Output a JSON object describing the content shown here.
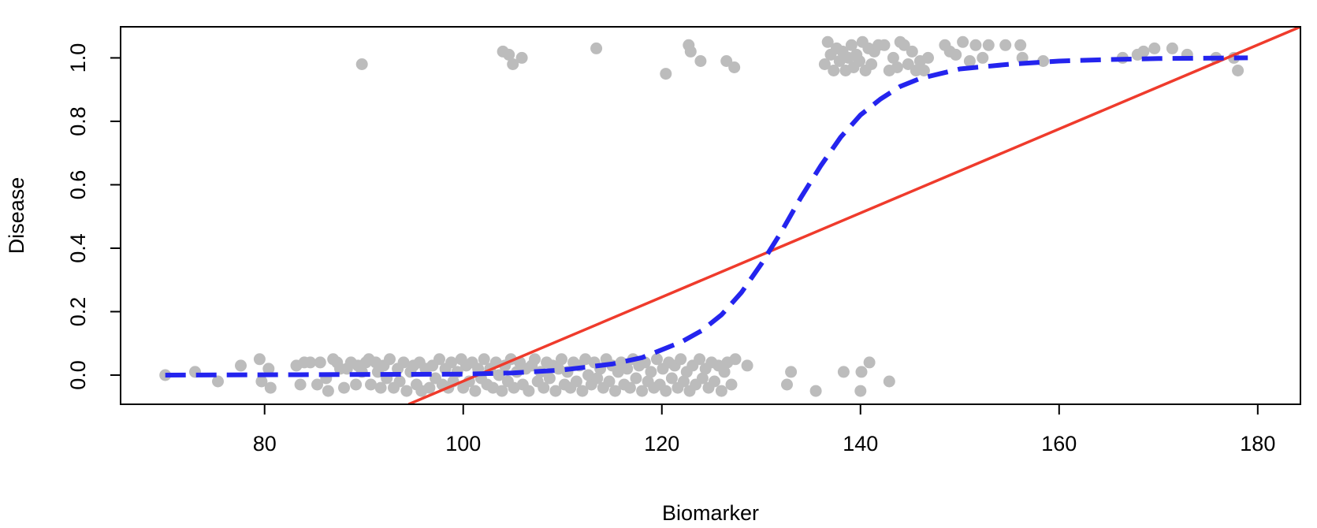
{
  "chart_data": {
    "type": "scatter",
    "title": "",
    "xlabel": "Biomarker",
    "ylabel": "Disease",
    "xlim": [
      65.5,
      184.3
    ],
    "ylim": [
      -0.092,
      1.098
    ],
    "x_ticks": [
      80,
      100,
      120,
      140,
      160,
      180
    ],
    "x_tick_labels": [
      "80",
      "100",
      "120",
      "140",
      "160",
      "180"
    ],
    "y_ticks": [
      0.0,
      0.2,
      0.4,
      0.6,
      0.8,
      1.0
    ],
    "y_tick_labels": [
      "0.0",
      "0.2",
      "0.4",
      "0.6",
      "0.8",
      "1.0"
    ],
    "grid": false,
    "legend": "none",
    "colors": {
      "points": "#bcbcbc",
      "linear_fit": "#ef3b2c",
      "logistic_fit": "#2424ee",
      "frame": "#000000"
    },
    "series": [
      {
        "type": "scatter",
        "points": [
          [
            70.0,
            0.0
          ],
          [
            73.0,
            0.01
          ],
          [
            75.3,
            -0.02
          ],
          [
            77.6,
            0.03
          ],
          [
            79.5,
            0.05
          ],
          [
            79.7,
            -0.02
          ],
          [
            80.4,
            0.02
          ],
          [
            80.6,
            -0.04
          ],
          [
            83.2,
            0.03
          ],
          [
            83.6,
            -0.03
          ],
          [
            84.0,
            0.04
          ],
          [
            84.6,
            0.04
          ],
          [
            85.3,
            -0.03
          ],
          [
            85.6,
            0.04
          ],
          [
            86.2,
            -0.01
          ],
          [
            86.4,
            -0.05
          ],
          [
            86.9,
            0.05
          ],
          [
            87.3,
            0.04
          ],
          [
            87.6,
            0.02
          ],
          [
            88.0,
            -0.04
          ],
          [
            88.3,
            0.02
          ],
          [
            88.7,
            0.04
          ],
          [
            89.2,
            -0.03
          ],
          [
            89.4,
            0.03
          ],
          [
            89.8,
            0.01
          ],
          [
            90.2,
            0.04
          ],
          [
            90.5,
            0.05
          ],
          [
            90.7,
            -0.03
          ],
          [
            91.2,
            0.04
          ],
          [
            91.4,
            0.01
          ],
          [
            91.7,
            -0.04
          ],
          [
            92.0,
            0.03
          ],
          [
            92.3,
            -0.01
          ],
          [
            92.6,
            0.05
          ],
          [
            93.0,
            -0.04
          ],
          [
            93.4,
            0.02
          ],
          [
            93.6,
            -0.02
          ],
          [
            94.0,
            0.04
          ],
          [
            94.3,
            -0.05
          ],
          [
            94.7,
            0.01
          ],
          [
            95.0,
            0.03
          ],
          [
            95.3,
            -0.03
          ],
          [
            95.6,
            0.04
          ],
          [
            95.8,
            -0.05
          ],
          [
            96.2,
            0.02
          ],
          [
            96.6,
            -0.04
          ],
          [
            96.9,
            0.03
          ],
          [
            97.2,
            -0.01
          ],
          [
            97.6,
            0.05
          ],
          [
            97.9,
            -0.03
          ],
          [
            98.2,
            0.02
          ],
          [
            98.5,
            -0.04
          ],
          [
            98.8,
            0.04
          ],
          [
            99.0,
            -0.02
          ],
          [
            99.4,
            0.01
          ],
          [
            99.8,
            0.05
          ],
          [
            100.0,
            -0.04
          ],
          [
            100.3,
            0.03
          ],
          [
            100.6,
            -0.02
          ],
          [
            100.9,
            0.04
          ],
          [
            101.2,
            -0.05
          ],
          [
            101.5,
            0.02
          ],
          [
            101.8,
            -0.01
          ],
          [
            102.1,
            0.05
          ],
          [
            102.4,
            -0.03
          ],
          [
            102.7,
            0.02
          ],
          [
            103.0,
            -0.04
          ],
          [
            103.3,
            0.04
          ],
          [
            103.6,
            0.0
          ],
          [
            103.9,
            -0.05
          ],
          [
            104.2,
            0.03
          ],
          [
            104.5,
            -0.02
          ],
          [
            104.8,
            0.05
          ],
          [
            105.1,
            -0.04
          ],
          [
            105.4,
            0.01
          ],
          [
            105.7,
            0.04
          ],
          [
            106.0,
            -0.03
          ],
          [
            106.3,
            0.02
          ],
          [
            106.6,
            -0.05
          ],
          [
            106.9,
            0.03
          ],
          [
            107.2,
            0.05
          ],
          [
            107.5,
            -0.02
          ],
          [
            107.8,
            0.01
          ],
          [
            108.1,
            -0.04
          ],
          [
            108.4,
            0.04
          ],
          [
            108.7,
            -0.01
          ],
          [
            109.0,
            0.03
          ],
          [
            109.3,
            -0.05
          ],
          [
            109.6,
            0.02
          ],
          [
            109.9,
            0.05
          ],
          [
            110.2,
            -0.03
          ],
          [
            110.5,
            0.01
          ],
          [
            110.8,
            -0.04
          ],
          [
            111.1,
            0.04
          ],
          [
            111.4,
            -0.02
          ],
          [
            111.7,
            0.03
          ],
          [
            112.0,
            -0.05
          ],
          [
            112.3,
            0.05
          ],
          [
            112.6,
            0.0
          ],
          [
            112.9,
            -0.03
          ],
          [
            113.2,
            0.04
          ],
          [
            113.5,
            -0.01
          ],
          [
            113.8,
            0.02
          ],
          [
            114.1,
            -0.04
          ],
          [
            114.4,
            0.05
          ],
          [
            114.7,
            -0.02
          ],
          [
            115.0,
            0.03
          ],
          [
            115.3,
            -0.05
          ],
          [
            115.6,
            0.01
          ],
          [
            115.9,
            0.04
          ],
          [
            116.2,
            -0.03
          ],
          [
            116.5,
            0.02
          ],
          [
            116.8,
            -0.04
          ],
          [
            117.1,
            0.05
          ],
          [
            117.4,
            -0.01
          ],
          [
            117.7,
            0.03
          ],
          [
            118.0,
            -0.05
          ],
          [
            118.3,
            0.04
          ],
          [
            118.6,
            -0.02
          ],
          [
            118.9,
            0.01
          ],
          [
            119.2,
            -0.04
          ],
          [
            119.5,
            0.05
          ],
          [
            119.8,
            -0.03
          ],
          [
            120.1,
            0.02
          ],
          [
            120.4,
            -0.05
          ],
          [
            120.7,
            0.04
          ],
          [
            121.0,
            -0.01
          ],
          [
            121.3,
            0.03
          ],
          [
            121.6,
            -0.04
          ],
          [
            121.9,
            0.05
          ],
          [
            122.2,
            -0.02
          ],
          [
            122.5,
            0.01
          ],
          [
            122.8,
            -0.05
          ],
          [
            123.1,
            0.03
          ],
          [
            123.4,
            -0.03
          ],
          [
            123.8,
            0.05
          ],
          [
            124.1,
            -0.01
          ],
          [
            124.4,
            0.02
          ],
          [
            124.7,
            -0.04
          ],
          [
            125.0,
            0.04
          ],
          [
            125.3,
            -0.02
          ],
          [
            125.7,
            0.03
          ],
          [
            126.0,
            -0.05
          ],
          [
            126.3,
            0.01
          ],
          [
            126.6,
            0.04
          ],
          [
            127.0,
            -0.03
          ],
          [
            127.4,
            0.05
          ],
          [
            128.6,
            0.03
          ],
          [
            132.6,
            -0.03
          ],
          [
            133.0,
            0.01
          ],
          [
            135.5,
            -0.05
          ],
          [
            138.3,
            0.01
          ],
          [
            140.0,
            -0.05
          ],
          [
            140.1,
            0.01
          ],
          [
            140.9,
            0.04
          ],
          [
            142.9,
            -0.02
          ],
          [
            89.8,
            0.98
          ],
          [
            104.0,
            1.02
          ],
          [
            104.6,
            1.01
          ],
          [
            105.0,
            0.98
          ],
          [
            105.9,
            1.0
          ],
          [
            113.4,
            1.03
          ],
          [
            120.4,
            0.95
          ],
          [
            122.7,
            1.04
          ],
          [
            122.9,
            1.02
          ],
          [
            123.9,
            0.99
          ],
          [
            126.5,
            0.99
          ],
          [
            127.3,
            0.97
          ],
          [
            136.4,
            0.98
          ],
          [
            136.7,
            1.05
          ],
          [
            137.0,
            1.01
          ],
          [
            137.3,
            0.96
          ],
          [
            137.6,
            1.03
          ],
          [
            137.9,
            0.99
          ],
          [
            138.2,
            1.02
          ],
          [
            138.5,
            0.96
          ],
          [
            138.8,
            1.0
          ],
          [
            139.1,
            1.04
          ],
          [
            139.3,
            0.97
          ],
          [
            139.6,
            1.01
          ],
          [
            139.9,
            0.99
          ],
          [
            140.2,
            1.05
          ],
          [
            140.5,
            0.96
          ],
          [
            140.8,
            1.03
          ],
          [
            141.1,
            0.98
          ],
          [
            141.4,
            1.02
          ],
          [
            141.8,
            1.04
          ],
          [
            142.4,
            1.04
          ],
          [
            142.9,
            0.96
          ],
          [
            143.3,
            1.0
          ],
          [
            143.7,
            0.97
          ],
          [
            144.0,
            1.05
          ],
          [
            144.4,
            1.04
          ],
          [
            144.8,
            0.98
          ],
          [
            145.2,
            1.02
          ],
          [
            145.6,
            0.96
          ],
          [
            146.0,
            0.99
          ],
          [
            146.4,
            0.96
          ],
          [
            146.8,
            1.0
          ],
          [
            148.5,
            1.04
          ],
          [
            149.0,
            1.02
          ],
          [
            149.6,
            1.01
          ],
          [
            150.3,
            1.05
          ],
          [
            151.0,
            0.99
          ],
          [
            151.6,
            1.04
          ],
          [
            152.3,
            1.0
          ],
          [
            152.9,
            1.04
          ],
          [
            154.6,
            1.04
          ],
          [
            156.1,
            1.04
          ],
          [
            156.3,
            1.0
          ],
          [
            158.4,
            0.99
          ],
          [
            166.4,
            1.0
          ],
          [
            167.9,
            1.01
          ],
          [
            168.5,
            1.02
          ],
          [
            169.6,
            1.03
          ],
          [
            171.4,
            1.03
          ],
          [
            172.9,
            1.01
          ],
          [
            175.8,
            1.0
          ],
          [
            177.6,
            1.0
          ],
          [
            178.0,
            0.96
          ]
        ]
      },
      {
        "type": "line",
        "style": "solid",
        "x": [
          94.5,
          184.3
        ],
        "y": [
          -0.092,
          1.098
        ]
      },
      {
        "type": "line",
        "style": "dashed",
        "x": [
          70,
          100,
          105,
          110,
          115,
          118,
          120,
          122,
          124,
          126,
          128,
          130,
          132,
          134,
          136,
          138,
          140,
          142,
          144,
          146,
          148,
          150,
          155,
          160,
          165,
          170,
          179
        ],
        "y": [
          0.0,
          0.003,
          0.007,
          0.016,
          0.035,
          0.055,
          0.08,
          0.105,
          0.14,
          0.19,
          0.26,
          0.35,
          0.45,
          0.56,
          0.66,
          0.75,
          0.82,
          0.87,
          0.91,
          0.935,
          0.95,
          0.965,
          0.98,
          0.99,
          0.995,
          0.998,
          1.0
        ]
      }
    ]
  }
}
